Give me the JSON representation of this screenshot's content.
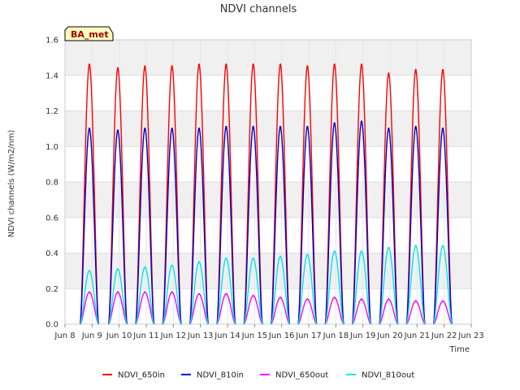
{
  "chart_data": {
    "type": "line",
    "title": "NDVI channels",
    "xlabel": "Time",
    "ylabel": "NDVI channels (W/m2/nm)",
    "badge": "BA_met",
    "xlim": [
      8,
      23
    ],
    "ylim": [
      0.0,
      1.6
    ],
    "yticks": [
      "0.0",
      "0.2",
      "0.4",
      "0.6",
      "0.8",
      "1.0",
      "1.2",
      "1.4",
      "1.6"
    ],
    "xticks": [
      "Jun 8",
      "Jun 9",
      "Jun 10",
      "Jun 11",
      "Jun 12",
      "Jun 13",
      "Jun 14",
      "Jun 15",
      "Jun 16",
      "Jun 17",
      "Jun 18",
      "Jun 19",
      "Jun 20",
      "Jun 21",
      "Jun 22",
      "Jun 23"
    ],
    "grid": true,
    "legend_position": "bottom",
    "days": [
      8.9,
      9.95,
      10.95,
      11.95,
      12.95,
      13.95,
      14.95,
      15.95,
      16.95,
      17.95,
      18.95,
      19.95,
      20.95,
      21.95
    ],
    "series": [
      {
        "name": "NDVI_650in",
        "color": "#ff0000",
        "peaks": [
          1.46,
          1.44,
          1.45,
          1.45,
          1.46,
          1.46,
          1.46,
          1.46,
          1.45,
          1.46,
          1.46,
          1.41,
          1.43,
          1.43
        ]
      },
      {
        "name": "NDVI_810in",
        "color": "#0000cc",
        "peaks": [
          1.1,
          1.09,
          1.1,
          1.1,
          1.1,
          1.11,
          1.11,
          1.11,
          1.11,
          1.13,
          1.14,
          1.1,
          1.11,
          1.1
        ]
      },
      {
        "name": "NDVI_650out",
        "color": "#ff00ff",
        "peaks": [
          0.18,
          0.18,
          0.18,
          0.18,
          0.17,
          0.17,
          0.16,
          0.15,
          0.14,
          0.15,
          0.14,
          0.14,
          0.13,
          0.13
        ]
      },
      {
        "name": "NDVI_810out",
        "color": "#00e5ee",
        "peaks": [
          0.3,
          0.31,
          0.32,
          0.33,
          0.35,
          0.37,
          0.37,
          0.38,
          0.39,
          0.41,
          0.41,
          0.43,
          0.44,
          0.44
        ]
      }
    ]
  }
}
